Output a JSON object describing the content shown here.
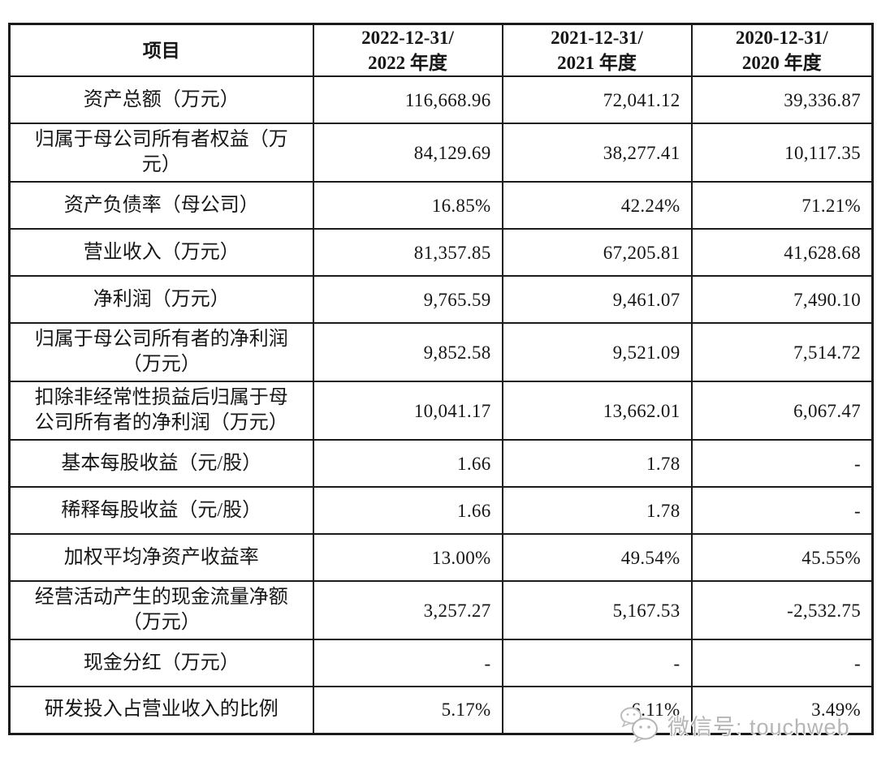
{
  "table": {
    "header": {
      "item_col": "项目",
      "period_cols": [
        "2022-12-31/\n2022 年度",
        "2021-12-31/\n2021 年度",
        "2020-12-31/\n2020 年度"
      ]
    },
    "rows": [
      {
        "label": "资产总额（万元）",
        "values": [
          "116,668.96",
          "72,041.12",
          "39,336.87"
        ]
      },
      {
        "label": "归属于母公司所有者权益（万\n元）",
        "values": [
          "84,129.69",
          "38,277.41",
          "10,117.35"
        ]
      },
      {
        "label": "资产负债率（母公司）",
        "values": [
          "16.85%",
          "42.24%",
          "71.21%"
        ]
      },
      {
        "label": "营业收入（万元）",
        "values": [
          "81,357.85",
          "67,205.81",
          "41,628.68"
        ]
      },
      {
        "label": "净利润（万元）",
        "values": [
          "9,765.59",
          "9,461.07",
          "7,490.10"
        ]
      },
      {
        "label": "归属于母公司所有者的净利润\n（万元）",
        "values": [
          "9,852.58",
          "9,521.09",
          "7,514.72"
        ]
      },
      {
        "label": "扣除非经常性损益后归属于母\n公司所有者的净利润（万元）",
        "values": [
          "10,041.17",
          "13,662.01",
          "6,067.47"
        ]
      },
      {
        "label": "基本每股收益（元/股）",
        "values": [
          "1.66",
          "1.78",
          "-"
        ]
      },
      {
        "label": "稀释每股收益（元/股）",
        "values": [
          "1.66",
          "1.78",
          "-"
        ]
      },
      {
        "label": "加权平均净资产收益率",
        "values": [
          "13.00%",
          "49.54%",
          "45.55%"
        ]
      },
      {
        "label": "经营活动产生的现金流量净额\n（万元）",
        "values": [
          "3,257.27",
          "5,167.53",
          "-2,532.75"
        ]
      },
      {
        "label": "现金分红（万元）",
        "values": [
          "-",
          "-",
          "-"
        ]
      },
      {
        "label": "研发投入占营业收入的比例",
        "values": [
          "5.17%",
          "6.11%",
          "3.49%"
        ]
      }
    ]
  },
  "watermark": {
    "icon": "wechat-icon",
    "text": "微信号: touchweb"
  },
  "colors": {
    "border": "#1b1b1b",
    "text": "#161616",
    "watermark": "#b6b6b6",
    "background": "#ffffff"
  }
}
